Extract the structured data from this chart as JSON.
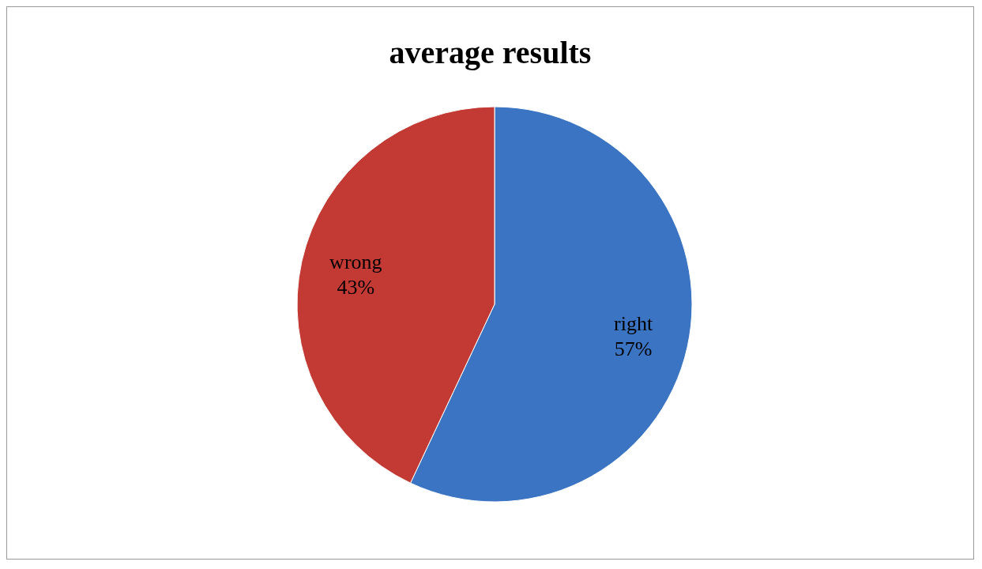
{
  "chart_data": {
    "type": "pie",
    "title": "average results",
    "categories": [
      "right",
      "wrong"
    ],
    "values": [
      57,
      43
    ],
    "value_labels": [
      "57%",
      "43%"
    ],
    "colors": [
      "#3a74c2",
      "#c23a33"
    ]
  }
}
